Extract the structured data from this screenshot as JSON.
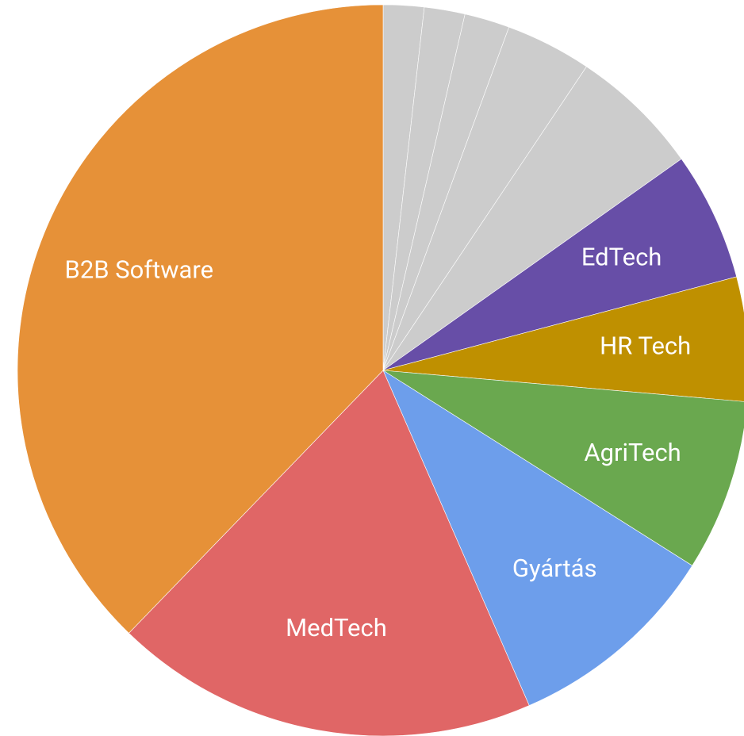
{
  "chart_data": {
    "type": "pie",
    "categories": [
      null,
      null,
      null,
      null,
      null,
      "EdTech",
      "HR Tech",
      "AgriTech",
      "Gyártás",
      "MedTech",
      "B2B Software"
    ],
    "values": [
      1.8,
      1.8,
      2.0,
      3.8,
      5.8,
      5.7,
      5.5,
      7.6,
      9.5,
      18.8,
      37.8
    ],
    "colors": [
      "#cccccc",
      "#cccccc",
      "#cccccc",
      "#cccccc",
      "#cccccc",
      "#674ea7",
      "#bf9000",
      "#6aa84f",
      "#6d9eeb",
      "#e06666",
      "#e69138"
    ]
  }
}
